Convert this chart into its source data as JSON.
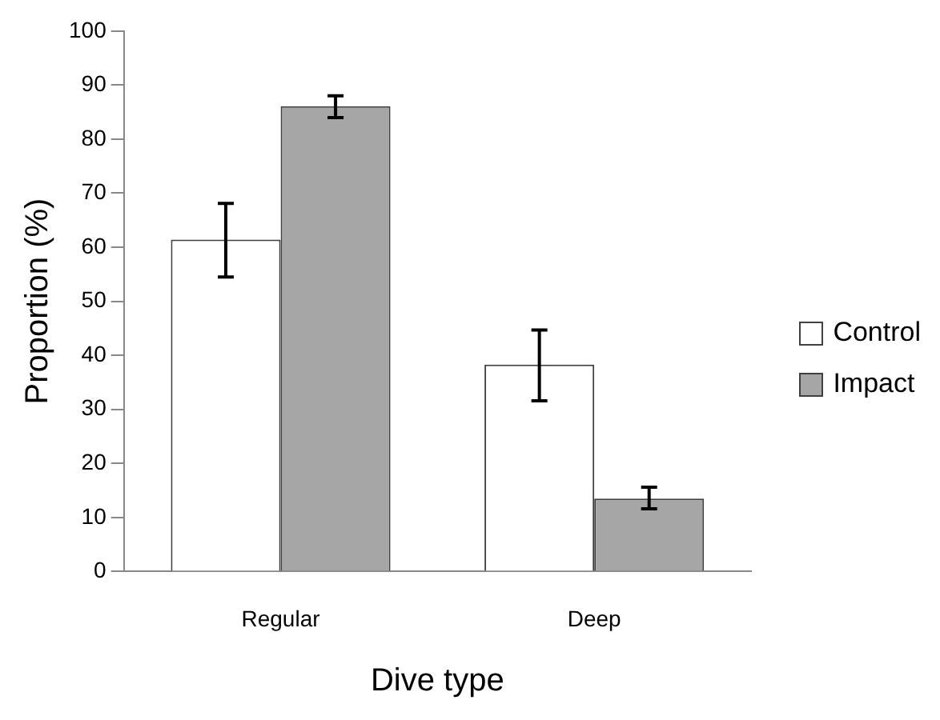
{
  "chart_data": {
    "type": "bar",
    "xlabel": "Dive type",
    "ylabel": "Proportion (%)",
    "categories": [
      "Regular",
      "Deep"
    ],
    "series": [
      {
        "name": "Control",
        "color": "#ffffff",
        "values": [
          61.4,
          38.3
        ],
        "errors": [
          [
            54.5,
            68.1
          ],
          [
            31.6,
            44.7
          ]
        ]
      },
      {
        "name": "Impact",
        "color": "#a6a6a6",
        "values": [
          86.1,
          13.5
        ],
        "errors": [
          [
            84.0,
            88.0
          ],
          [
            11.6,
            15.6
          ]
        ]
      }
    ],
    "ylim": [
      0,
      100
    ],
    "yticks": [
      0,
      10,
      20,
      30,
      40,
      50,
      60,
      70,
      80,
      90,
      100
    ],
    "grid": false,
    "legend": "right"
  }
}
